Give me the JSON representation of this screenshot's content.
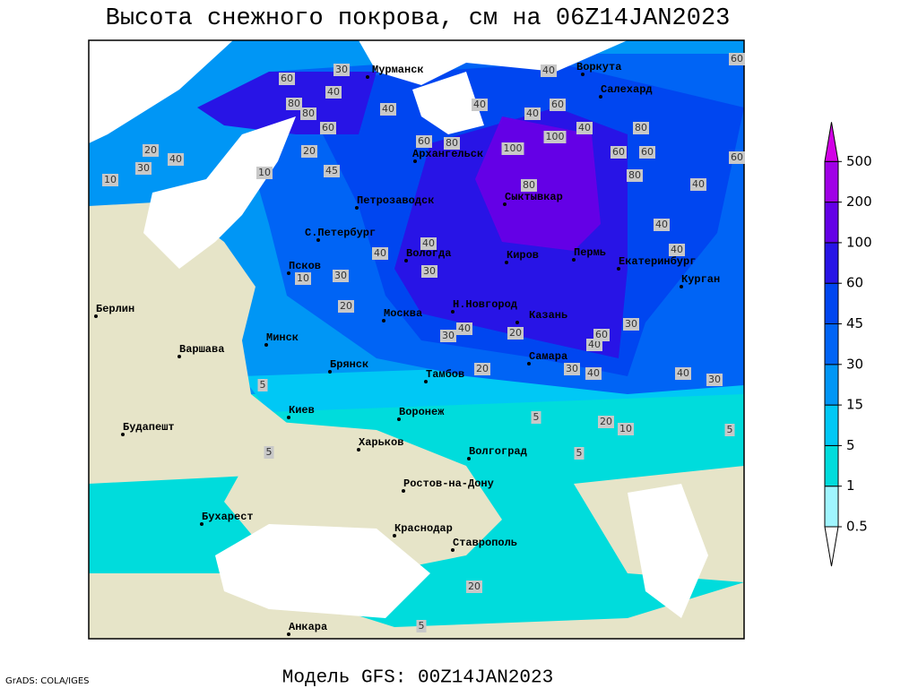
{
  "header": {
    "title": "Высота снежного покрова, см на 06Z14JAN2023"
  },
  "footer": {
    "model": "Модель GFS: 00Z14JAN2023",
    "credit": "GrADS: COLA/IGES"
  },
  "map": {
    "cities": [
      "Мурманск",
      "Воркута",
      "Салехард",
      "Архангельск",
      "Петрозаводск",
      "С.Петербург",
      "Сыктывкар",
      "Вологда",
      "Киров",
      "Пермь",
      "Екатеринбург",
      "Курган",
      "Псков",
      "Берлин",
      "Москва",
      "Н.Новгород",
      "Казань",
      "Варшава",
      "Минск",
      "Брянск",
      "Самара",
      "Тамбов",
      "Воронеж",
      "Киев",
      "Будапешт",
      "Харьков",
      "Волгоград",
      "Ростов-на-Дону",
      "Бухарест",
      "Краснодар",
      "Ставрополь",
      "Анкара"
    ],
    "contour_labels": [
      30,
      60,
      40,
      80,
      80,
      40,
      60,
      20,
      30,
      40,
      10,
      20,
      45,
      10,
      40,
      40,
      60,
      40,
      100,
      100,
      60,
      80,
      40,
      80,
      60,
      60,
      80,
      40,
      60,
      60,
      40,
      40,
      80,
      40,
      30,
      10,
      20,
      40,
      30,
      40,
      30,
      20,
      40,
      60,
      30,
      20,
      30,
      40,
      40,
      30,
      20,
      10,
      5,
      5,
      5,
      5,
      20,
      5,
      5
    ]
  },
  "legend": {
    "levels": [
      0.5,
      1,
      5,
      15,
      30,
      45,
      60,
      100,
      200,
      500
    ],
    "colors": [
      "#ffffff",
      "#a0f5ff",
      "#00dcdc",
      "#00c8f5",
      "#0096f5",
      "#0064f5",
      "#0046f0",
      "#2814e6",
      "#6400e6",
      "#a000e6",
      "#d200e6"
    ]
  }
}
